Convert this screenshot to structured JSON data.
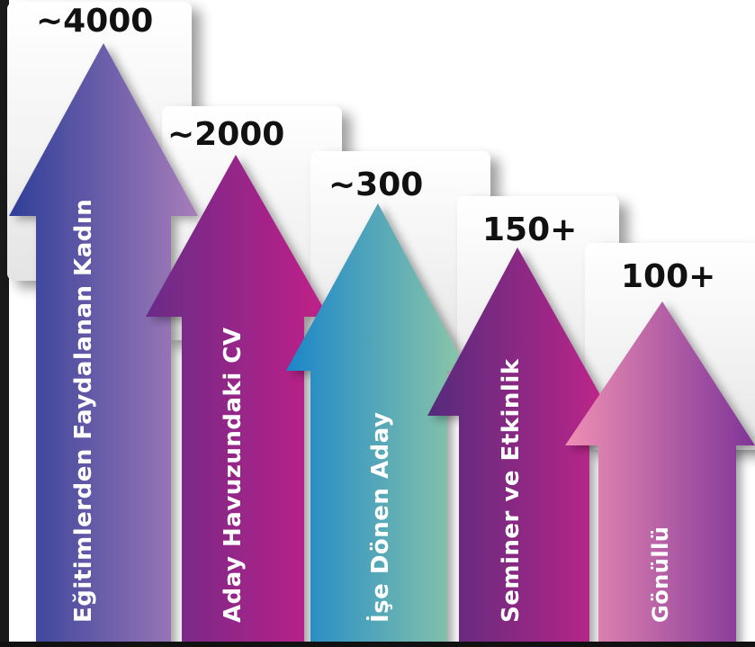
{
  "stats": [
    {
      "value": "~4000",
      "label": "Eğitimlerden Faydalanan Kadın",
      "gradient": [
        "#2e3f98",
        "#a77dba"
      ]
    },
    {
      "value": "~2000",
      "label": "Aday Havuzundaki CV",
      "gradient": [
        "#6a2c88",
        "#c21f88"
      ]
    },
    {
      "value": "~300",
      "label": "İşe Dönen Aday",
      "gradient": [
        "#1b86c9",
        "#8ec8a8"
      ]
    },
    {
      "value": "150+",
      "label": "Seminer ve Etkinlik",
      "gradient": [
        "#552a7c",
        "#c2278a"
      ]
    },
    {
      "value": "100+",
      "label": "Gönüllü",
      "gradient": [
        "#ef8fb4",
        "#7f3598"
      ]
    }
  ],
  "colors": {
    "card": "#f2f2f2",
    "value_text": "#111111",
    "label_text": "#ffffff",
    "edge": "#111111"
  }
}
